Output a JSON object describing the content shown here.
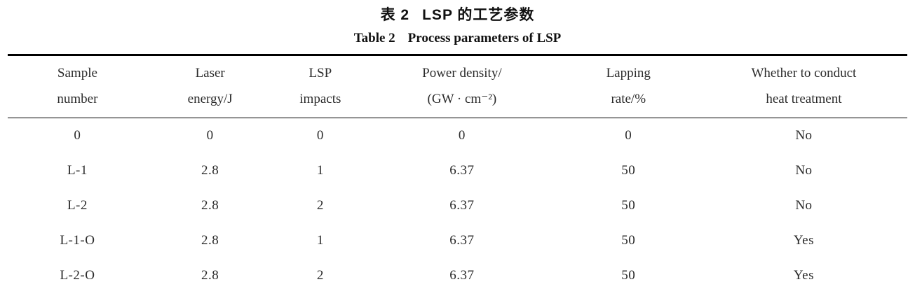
{
  "table": {
    "title_zh": {
      "label": "表 2",
      "text": "LSP 的工艺参数"
    },
    "title_en": {
      "label": "Table 2",
      "text": "Process parameters of LSP"
    },
    "columns": [
      {
        "name": "sample-number",
        "lines": [
          "Sample",
          "number"
        ]
      },
      {
        "name": "laser-energy",
        "lines": [
          "Laser",
          "energy/J"
        ]
      },
      {
        "name": "lsp-impacts",
        "lines": [
          "LSP",
          "impacts"
        ]
      },
      {
        "name": "power-density",
        "lines": [
          "Power density/",
          "(GW · cm⁻²)"
        ]
      },
      {
        "name": "lapping-rate",
        "lines": [
          "Lapping",
          "rate/%"
        ]
      },
      {
        "name": "heat-treatment",
        "lines": [
          "Whether to conduct",
          "heat treatment"
        ]
      }
    ],
    "rows": [
      [
        "0",
        "0",
        "0",
        "0",
        "0",
        "No"
      ],
      [
        "L-1",
        "2.8",
        "1",
        "6.37",
        "50",
        "No"
      ],
      [
        "L-2",
        "2.8",
        "2",
        "6.37",
        "50",
        "No"
      ],
      [
        "L-1-O",
        "2.8",
        "1",
        "6.37",
        "50",
        "Yes"
      ],
      [
        "L-2-O",
        "2.8",
        "2",
        "6.37",
        "50",
        "Yes"
      ]
    ]
  },
  "colors": {
    "background": "#ffffff",
    "text": "#2b2b2b",
    "rule": "#000000"
  },
  "chart_data": {
    "type": "table",
    "title": "表 2 LSP 的工艺参数 / Table 2 Process parameters of LSP",
    "columns": [
      "Sample number",
      "Laser energy/J",
      "LSP impacts",
      "Power density/(GW · cm⁻²)",
      "Lapping rate/%",
      "Whether to conduct heat treatment"
    ],
    "rows": [
      [
        "0",
        0,
        0,
        0,
        0,
        "No"
      ],
      [
        "L-1",
        2.8,
        1,
        6.37,
        50,
        "No"
      ],
      [
        "L-2",
        2.8,
        2,
        6.37,
        50,
        "No"
      ],
      [
        "L-1-O",
        2.8,
        1,
        6.37,
        50,
        "Yes"
      ],
      [
        "L-2-O",
        2.8,
        2,
        6.37,
        50,
        "Yes"
      ]
    ]
  }
}
